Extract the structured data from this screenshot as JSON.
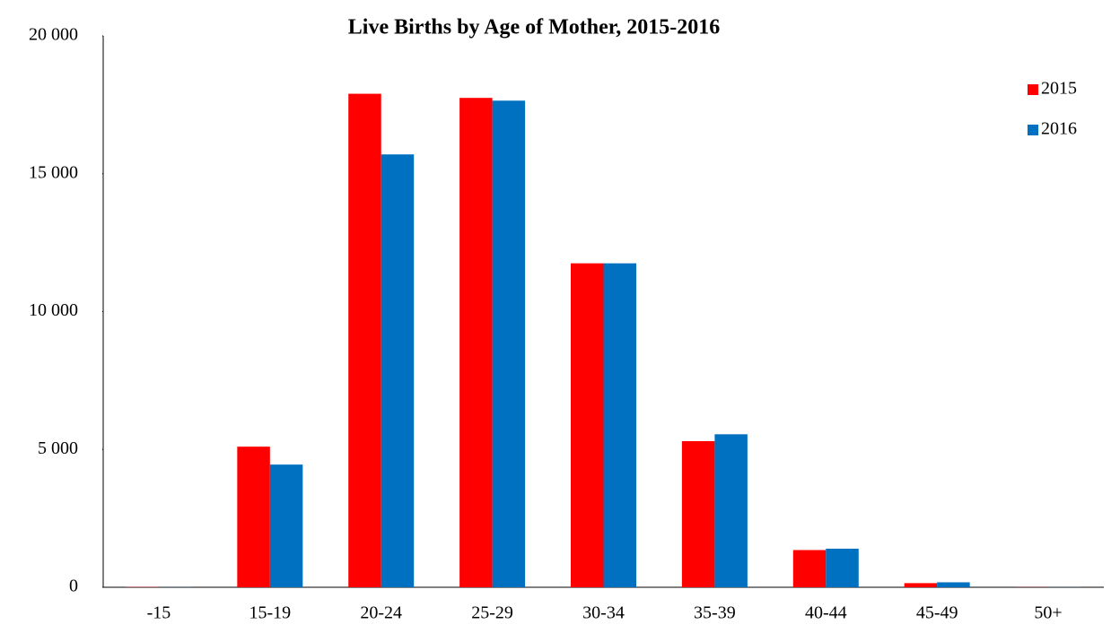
{
  "chart_data": {
    "type": "bar",
    "title": "Live Births by Age of Mother, 2015-2016",
    "categories": [
      "-15",
      "15-19",
      "20-24",
      "25-29",
      "30-34",
      "35-39",
      "40-44",
      "45-49",
      "50+"
    ],
    "series": [
      {
        "name": "2015",
        "color": "#ff0000",
        "values": [
          10,
          5100,
          17900,
          17750,
          11750,
          5300,
          1350,
          150,
          5
        ]
      },
      {
        "name": "2016",
        "color": "#0070c0",
        "values": [
          5,
          4450,
          15700,
          17650,
          11750,
          5550,
          1400,
          180,
          5
        ]
      }
    ],
    "ylim": [
      0,
      20000
    ],
    "yticks": [
      0,
      {
        "value": 5000,
        "label": "5 000"
      },
      {
        "value": 10000,
        "label": "10 000"
      },
      {
        "value": 15000,
        "label": "15 000"
      },
      {
        "value": 20000,
        "label": "20 000"
      }
    ],
    "grid": false,
    "legend": "top-right"
  }
}
